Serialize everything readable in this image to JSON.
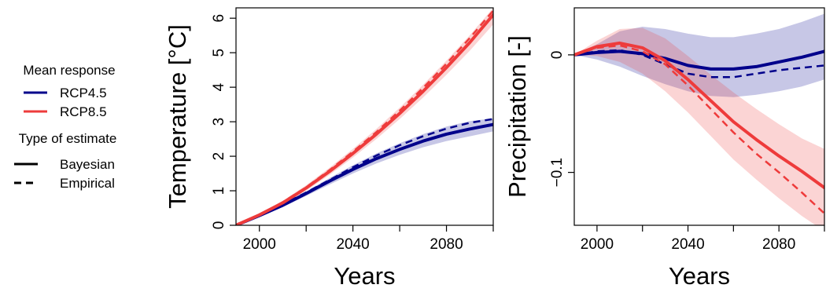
{
  "legend": {
    "mean_response": {
      "title": "Mean response",
      "items": [
        {
          "label": "RCP4.5",
          "color": "#00008B"
        },
        {
          "label": "RCP8.5",
          "color": "#EE3B3B"
        }
      ]
    },
    "estimate_type": {
      "title": "Type of estimate",
      "items": [
        {
          "label": "Bayesian",
          "style": "solid"
        },
        {
          "label": "Empirical",
          "style": "dashed"
        }
      ]
    }
  },
  "chart_data": [
    {
      "type": "line",
      "xlabel": "Years",
      "ylabel": "Temperature [°C]",
      "xlim": [
        1990,
        2100
      ],
      "ylim": [
        0,
        6.3
      ],
      "xticks": [
        2000,
        2020,
        2040,
        2060,
        2080,
        2100
      ],
      "xtick_labels": [
        "2000",
        "",
        "2040",
        "",
        "2080",
        ""
      ],
      "yticks": [
        0,
        1,
        2,
        3,
        4,
        5,
        6
      ],
      "ytick_labels": [
        "0",
        "1",
        "2",
        "3",
        "4",
        "5",
        "6"
      ],
      "grid": false,
      "x": [
        1990,
        2000,
        2010,
        2020,
        2030,
        2040,
        2050,
        2060,
        2070,
        2080,
        2090,
        2100
      ],
      "series": [
        {
          "name": "RCP4.5",
          "color": "#00008B",
          "bayesian": [
            0,
            0.28,
            0.58,
            0.92,
            1.28,
            1.62,
            1.93,
            2.2,
            2.44,
            2.64,
            2.79,
            2.92
          ],
          "empirical": [
            0,
            0.28,
            0.6,
            0.95,
            1.31,
            1.68,
            2.02,
            2.32,
            2.58,
            2.8,
            2.97,
            3.08
          ],
          "band_low": [
            0,
            0.26,
            0.53,
            0.85,
            1.18,
            1.5,
            1.79,
            2.04,
            2.26,
            2.44,
            2.58,
            2.72
          ],
          "band_high": [
            0,
            0.3,
            0.62,
            0.98,
            1.37,
            1.74,
            2.08,
            2.38,
            2.64,
            2.86,
            3.02,
            3.1
          ]
        },
        {
          "name": "RCP8.5",
          "color": "#EE3B3B",
          "bayesian": [
            0,
            0.3,
            0.65,
            1.08,
            1.56,
            2.08,
            2.64,
            3.24,
            3.88,
            4.57,
            5.3,
            6.1
          ],
          "empirical": [
            0,
            0.3,
            0.67,
            1.1,
            1.6,
            2.13,
            2.7,
            3.32,
            3.98,
            4.68,
            5.43,
            6.22
          ],
          "band_low": [
            0,
            0.27,
            0.6,
            1.0,
            1.46,
            1.96,
            2.5,
            3.08,
            3.7,
            4.36,
            5.06,
            5.82
          ],
          "band_high": [
            0,
            0.33,
            0.71,
            1.16,
            1.67,
            2.21,
            2.79,
            3.41,
            4.07,
            4.77,
            5.51,
            6.3
          ]
        }
      ]
    },
    {
      "type": "line",
      "xlabel": "Years",
      "ylabel": "Precipitation [-]",
      "xlim": [
        1990,
        2100
      ],
      "ylim": [
        -0.145,
        0.04
      ],
      "xticks": [
        2000,
        2020,
        2040,
        2060,
        2080,
        2100
      ],
      "xtick_labels": [
        "2000",
        "",
        "2040",
        "",
        "2080",
        ""
      ],
      "yticks": [
        0,
        -0.1
      ],
      "ytick_labels": [
        "0",
        "−0.1"
      ],
      "grid": false,
      "x": [
        1990,
        2000,
        2010,
        2020,
        2030,
        2040,
        2050,
        2060,
        2070,
        2080,
        2090,
        2100
      ],
      "series": [
        {
          "name": "RCP4.5",
          "color": "#00008B",
          "bayesian": [
            0.0,
            0.002,
            0.003,
            0.001,
            -0.003,
            -0.009,
            -0.012,
            -0.012,
            -0.01,
            -0.006,
            -0.002,
            0.003
          ],
          "empirical": [
            0.0,
            0.003,
            0.004,
            0.0,
            -0.008,
            -0.016,
            -0.019,
            -0.019,
            -0.016,
            -0.013,
            -0.011,
            -0.009
          ],
          "band_low": [
            0.0,
            -0.004,
            -0.01,
            -0.018,
            -0.025,
            -0.031,
            -0.035,
            -0.036,
            -0.034,
            -0.031,
            -0.027,
            -0.021
          ],
          "band_high": [
            0.0,
            0.009,
            0.02,
            0.024,
            0.022,
            0.018,
            0.015,
            0.015,
            0.018,
            0.022,
            0.028,
            0.035
          ]
        },
        {
          "name": "RCP8.5",
          "color": "#EE3B3B",
          "bayesian": [
            0.0,
            0.007,
            0.01,
            0.006,
            -0.005,
            -0.021,
            -0.039,
            -0.057,
            -0.072,
            -0.086,
            -0.099,
            -0.113
          ],
          "empirical": [
            0.0,
            0.006,
            0.008,
            0.003,
            -0.008,
            -0.026,
            -0.046,
            -0.066,
            -0.084,
            -0.1,
            -0.117,
            -0.135
          ],
          "band_low": [
            0.0,
            -0.001,
            -0.006,
            -0.016,
            -0.031,
            -0.049,
            -0.069,
            -0.089,
            -0.106,
            -0.122,
            -0.137,
            -0.15
          ],
          "band_high": [
            0.0,
            0.012,
            0.022,
            0.023,
            0.014,
            -0.001,
            -0.017,
            -0.032,
            -0.046,
            -0.059,
            -0.071,
            -0.08
          ]
        }
      ]
    }
  ]
}
